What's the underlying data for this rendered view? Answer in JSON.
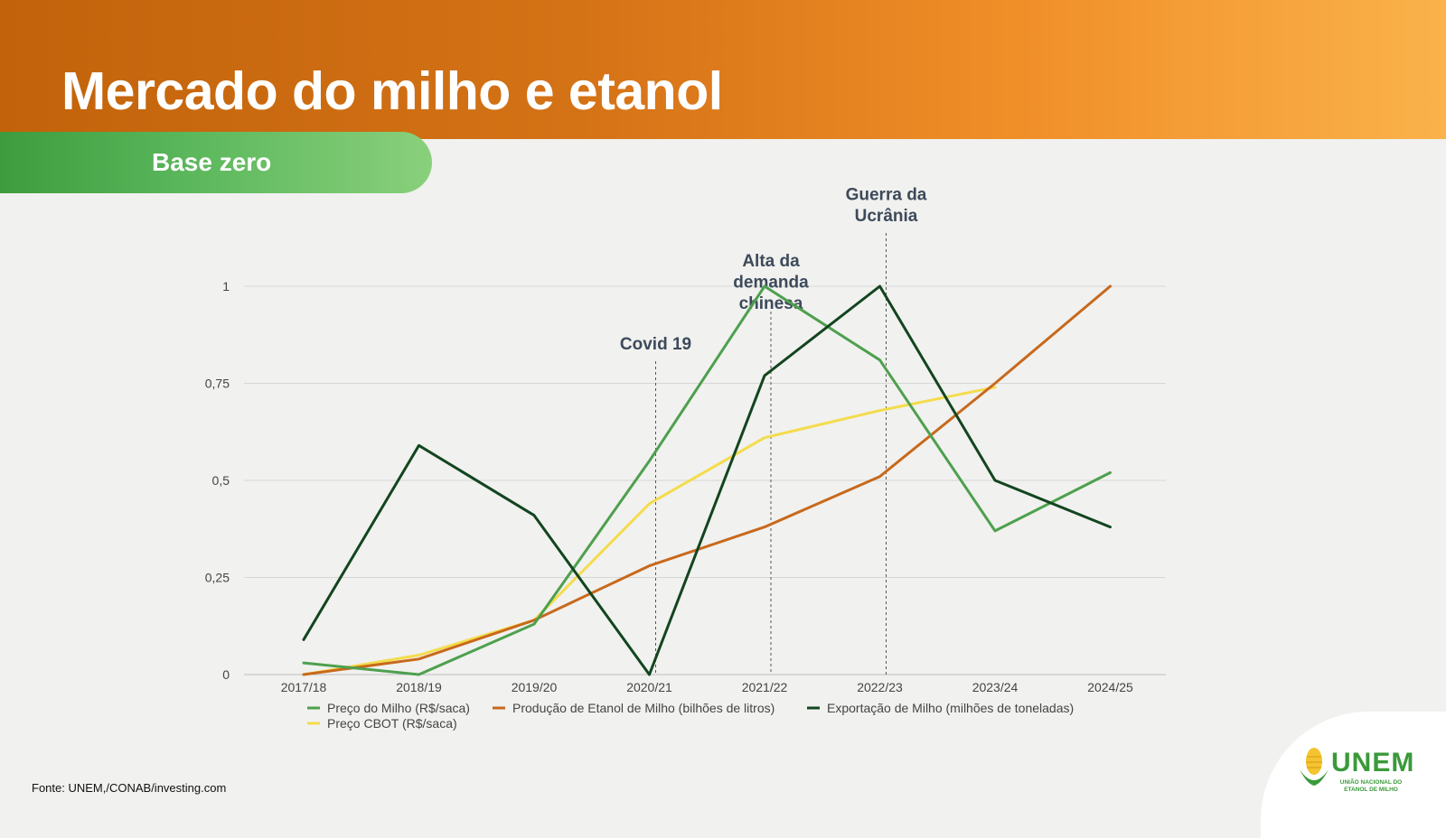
{
  "slide": {
    "title": "Mercado do milho e etanol",
    "subtitle": "Base zero",
    "source": "Fonte: UNEM,/CONAB/investing.com"
  },
  "logo": {
    "name": "UNEM",
    "tagline": "UNIÃO NACIONAL DO ETANOL DE MILHO",
    "icon": "corn-cob-icon",
    "color": "#3a9a3a"
  },
  "colors": {
    "header_start": "#c2630b",
    "header_end": "#fbb24a",
    "pill_green": "#4caf50"
  },
  "chart_data": {
    "type": "line",
    "categories": [
      "2017/18",
      "2018/19",
      "2019/20",
      "2020/21",
      "2021/22",
      "2022/23",
      "2023/24",
      "2024/25"
    ],
    "ylim": [
      0,
      1
    ],
    "yticks": [
      {
        "value": 0,
        "label": "0"
      },
      {
        "value": 0.25,
        "label": "0,25"
      },
      {
        "value": 0.5,
        "label": "0,5"
      },
      {
        "value": 0.75,
        "label": "0,75"
      },
      {
        "value": 1,
        "label": "1"
      }
    ],
    "grid": true,
    "legend_position": "bottom",
    "series": [
      {
        "name": "Preço do Milho (R$/saca)",
        "color": "#4ea04e",
        "values": [
          0.03,
          0.0,
          0.13,
          0.55,
          1.0,
          0.81,
          0.37,
          0.52
        ]
      },
      {
        "name": "Produção de Etanol de Milho (bilhões de litros)",
        "color": "#c8691c",
        "values": [
          0.0,
          0.04,
          0.14,
          0.28,
          0.38,
          0.51,
          0.75,
          1.0
        ]
      },
      {
        "name": "Exportação de Milho (milhões de toneladas)",
        "color": "#12451f",
        "values": [
          0.09,
          0.59,
          0.41,
          0.0,
          0.77,
          1.0,
          0.5,
          0.38
        ]
      },
      {
        "name": "Preço CBOT (R$/saca)",
        "color": "#f4dc4c",
        "values": [
          0.0,
          0.05,
          0.14,
          0.44,
          0.61,
          0.68,
          0.74,
          null
        ]
      }
    ],
    "annotations": [
      {
        "text": [
          "Covid 19"
        ],
        "x_category": 3
      },
      {
        "text": [
          "Alta da",
          "demanda",
          "chinesa"
        ],
        "x_category": 4
      },
      {
        "text": [
          "Guerra da",
          "Ucrânia"
        ],
        "x_category": 5
      }
    ]
  }
}
